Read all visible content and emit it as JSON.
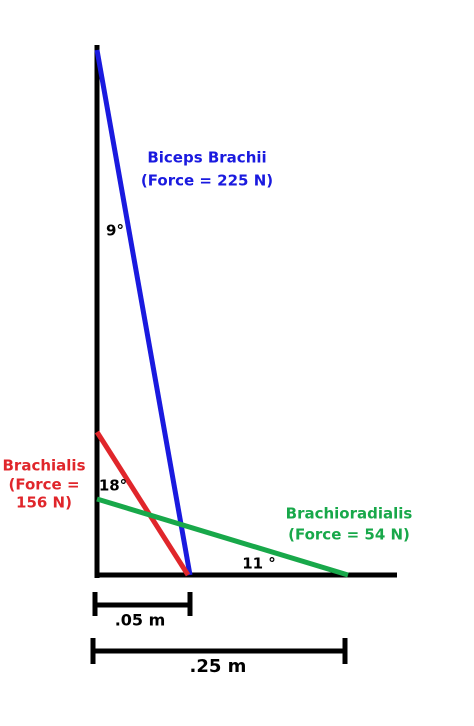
{
  "muscles": [
    {
      "name": "Biceps Brachii",
      "force": "(Force = 225 N)",
      "angle": "9°"
    },
    {
      "name": "Brachialis",
      "force_lines": [
        "(Force =",
        "156 N)"
      ],
      "angle": "18°"
    },
    {
      "name": "Brachioradialis",
      "force": "(Force = 54 N)",
      "angle": "11 °"
    }
  ],
  "distances": [
    ".05 m",
    ".25 m"
  ]
}
